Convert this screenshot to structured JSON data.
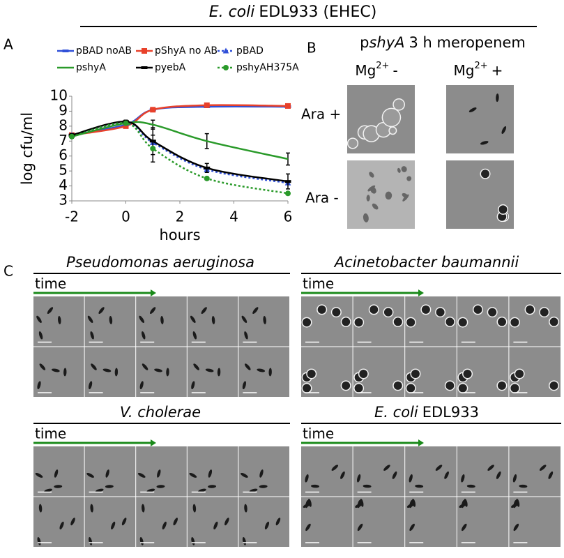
{
  "figure_title": {
    "species": "E. coli",
    "strain": "EDL933 (EHEC)"
  },
  "panel_labels": [
    "A",
    "B",
    "C"
  ],
  "chart_data": {
    "type": "line",
    "xlabel": "hours",
    "ylabel": "log cfu/ml",
    "x": [
      -2,
      0,
      1,
      3,
      6
    ],
    "xlim": [
      -2,
      6
    ],
    "xticks": [
      -2,
      0,
      2,
      4,
      6
    ],
    "ylim": [
      3,
      10
    ],
    "yticks": [
      3,
      4,
      5,
      6,
      7,
      8,
      9,
      10
    ],
    "series": [
      {
        "name": "pBAD noAB",
        "color": "#3050d8",
        "dashed": false,
        "marker": "dash",
        "values": [
          7.4,
          8.1,
          9.1,
          9.3,
          9.3
        ]
      },
      {
        "name": "pShyA no AB",
        "color": "#e8412a",
        "dashed": false,
        "marker": "square",
        "values": [
          7.4,
          8.0,
          9.1,
          9.4,
          9.35
        ]
      },
      {
        "name": "pBAD",
        "color": "#3050d8",
        "dashed": true,
        "marker": "triangle",
        "values": [
          7.4,
          8.2,
          6.9,
          5.1,
          4.2
        ]
      },
      {
        "name": "pshyA",
        "color": "#2a9a2a",
        "dashed": false,
        "marker": "none",
        "values": [
          7.3,
          8.2,
          8.1,
          7.0,
          5.8
        ],
        "errors": [
          0.1,
          0.1,
          0.3,
          0.5,
          0.4
        ]
      },
      {
        "name": "pyebA",
        "color": "#000000",
        "dashed": false,
        "marker": "dash",
        "values": [
          7.4,
          8.3,
          7.0,
          5.2,
          4.3
        ],
        "errors": [
          0.1,
          0.1,
          0.9,
          0.3,
          0.5
        ]
      },
      {
        "name": "pshyAH375A",
        "color": "#2a9a2a",
        "dashed": true,
        "marker": "circle",
        "values": [
          7.3,
          8.2,
          6.5,
          4.5,
          3.5
        ],
        "errors": [
          0.1,
          0.1,
          0.9,
          0.1,
          0.1
        ]
      }
    ]
  },
  "panel_b": {
    "title": {
      "prefix": "p",
      "gene": "shyA",
      "rest": "3 h meropenem"
    },
    "columns": [
      {
        "ion": "Mg",
        "charge": "2+",
        "sign": "-"
      },
      {
        "ion": "Mg",
        "charge": "2+",
        "sign": "+"
      }
    ],
    "rows": [
      "Ara +",
      "Ara -"
    ]
  },
  "panel_c": {
    "time_label": "time",
    "panels": [
      {
        "species": "Pseudomonas aeruginosa"
      },
      {
        "species": "Acinetobacter baumannii"
      },
      {
        "species": "V. cholerae"
      },
      {
        "species": "E. coli",
        "strain": "EDL933"
      }
    ]
  }
}
